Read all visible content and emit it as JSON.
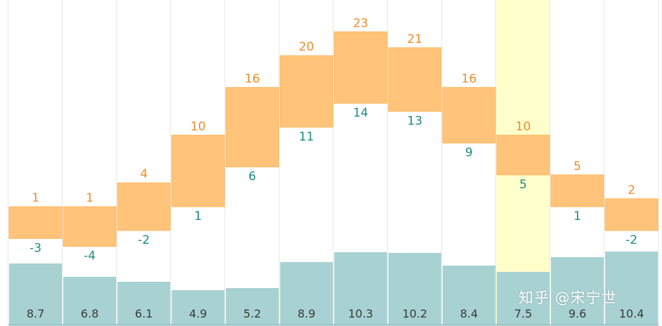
{
  "watermark": "知乎 @宋宁世",
  "colors": {
    "range_fill": "#ffc47a",
    "range_stroke": "#ffb866",
    "high_label": "#f08c2b",
    "low_label": "#1e8a88",
    "bottom_bar": "#a8d1d2",
    "bottom_label": "#3a3a3a",
    "highlight": "#ffffcc",
    "divider": "#e6e6e6",
    "baseline": "#8fc3c5"
  },
  "chart_data": {
    "type": "bar",
    "highlight_index": 9,
    "range_scale": [
      -8,
      27
    ],
    "bottom_scale": [
      0,
      19
    ],
    "series": [
      {
        "values": [
          1,
          1,
          4,
          10,
          16,
          20,
          23,
          21,
          16,
          10,
          5,
          2
        ]
      },
      {
        "values": [
          -3,
          -4,
          -2,
          1,
          6,
          11,
          14,
          13,
          9,
          5,
          1,
          -2
        ]
      },
      {
        "values": [
          8.7,
          6.8,
          6.1,
          4.9,
          5.2,
          8.9,
          10.3,
          10.2,
          8.4,
          7.5,
          9.6,
          10.4
        ]
      }
    ]
  }
}
